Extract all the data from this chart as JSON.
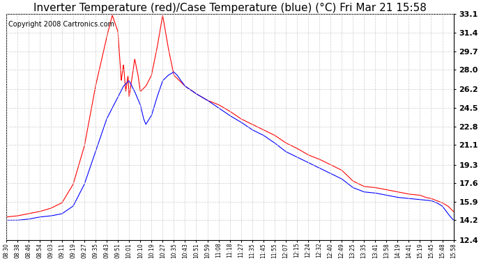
{
  "title": "Inverter Temperature (red)/Case Temperature (blue) (°C) Fri Mar 21 15:58",
  "copyright": "Copyright 2008 Cartronics.com",
  "yticks": [
    12.4,
    14.2,
    15.9,
    17.6,
    19.3,
    21.1,
    22.8,
    24.5,
    26.2,
    28.0,
    29.7,
    31.4,
    33.1
  ],
  "ymin": 12.4,
  "ymax": 33.1,
  "xtick_labels": [
    "08:30",
    "08:38",
    "08:46",
    "08:54",
    "09:03",
    "09:11",
    "09:19",
    "09:27",
    "09:35",
    "09:43",
    "09:51",
    "10:01",
    "10:10",
    "10:19",
    "10:27",
    "10:35",
    "10:43",
    "10:51",
    "10:59",
    "11:08",
    "11:18",
    "11:27",
    "11:35",
    "11:45",
    "11:55",
    "12:07",
    "12:15",
    "12:24",
    "12:32",
    "12:40",
    "12:49",
    "13:25",
    "13:35",
    "13:41",
    "13:58",
    "14:19",
    "14:41",
    "15:19",
    "15:45",
    "15:48",
    "15:58"
  ],
  "red_line_color": "#ff0000",
  "blue_line_color": "#0000ff",
  "background_color": "#ffffff",
  "grid_color": "#cccccc",
  "title_fontsize": 11,
  "annotation_fontsize": 7
}
